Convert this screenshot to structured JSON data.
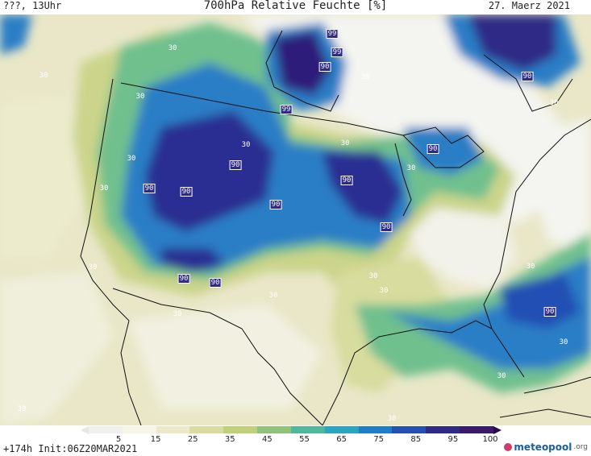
{
  "header": {
    "left": "???, 13Uhr",
    "title": "700hPa Relative Feuchte [%]",
    "date": "27. Maerz 2021"
  },
  "footer": {
    "run": "+174h  Init:06Z20MAR2021",
    "brand": "meteopool",
    "brand_suffix": ".org"
  },
  "colorbar": {
    "ticks": [
      "5",
      "15",
      "25",
      "35",
      "45",
      "55",
      "65",
      "75",
      "85",
      "95",
      "100"
    ],
    "colors": [
      "#f0f0f0",
      "#f7f6e6",
      "#ecebc9",
      "#d8dc9e",
      "#bfcf7a",
      "#8fc27a",
      "#4fb79a",
      "#2aa6c0",
      "#1e7fc9",
      "#2450b4",
      "#2e2a86",
      "#3a1a6a"
    ]
  },
  "map_labels": [
    {
      "text": "30",
      "box": false
    },
    {
      "text": "30",
      "box": false
    },
    {
      "text": "99",
      "box": true
    },
    {
      "text": "99",
      "box": true
    },
    {
      "text": "90",
      "box": true
    },
    {
      "text": "30",
      "box": false
    },
    {
      "text": "90",
      "box": true
    },
    {
      "text": "30",
      "box": false
    },
    {
      "text": "30",
      "box": false
    },
    {
      "text": "99",
      "box": true
    },
    {
      "text": "30",
      "box": false
    },
    {
      "text": "30",
      "box": false
    },
    {
      "text": "30",
      "box": false
    },
    {
      "text": "90",
      "box": true
    },
    {
      "text": "90",
      "box": true
    },
    {
      "text": "90",
      "box": true
    },
    {
      "text": "90",
      "box": true
    },
    {
      "text": "30",
      "box": false
    },
    {
      "text": "90",
      "box": true
    },
    {
      "text": "90",
      "box": true
    },
    {
      "text": "90",
      "box": true
    },
    {
      "text": "30",
      "box": false
    },
    {
      "text": "90",
      "box": true
    },
    {
      "text": "90",
      "box": true
    },
    {
      "text": "30",
      "box": false
    },
    {
      "text": "30",
      "box": false
    },
    {
      "text": "30",
      "box": false
    },
    {
      "text": "30",
      "box": false
    },
    {
      "text": "30",
      "box": false
    },
    {
      "text": "30",
      "box": false
    },
    {
      "text": "90",
      "box": true
    },
    {
      "text": "30",
      "box": false
    },
    {
      "text": "30",
      "box": false
    },
    {
      "text": "30",
      "box": false
    },
    {
      "text": "30",
      "box": false
    }
  ]
}
